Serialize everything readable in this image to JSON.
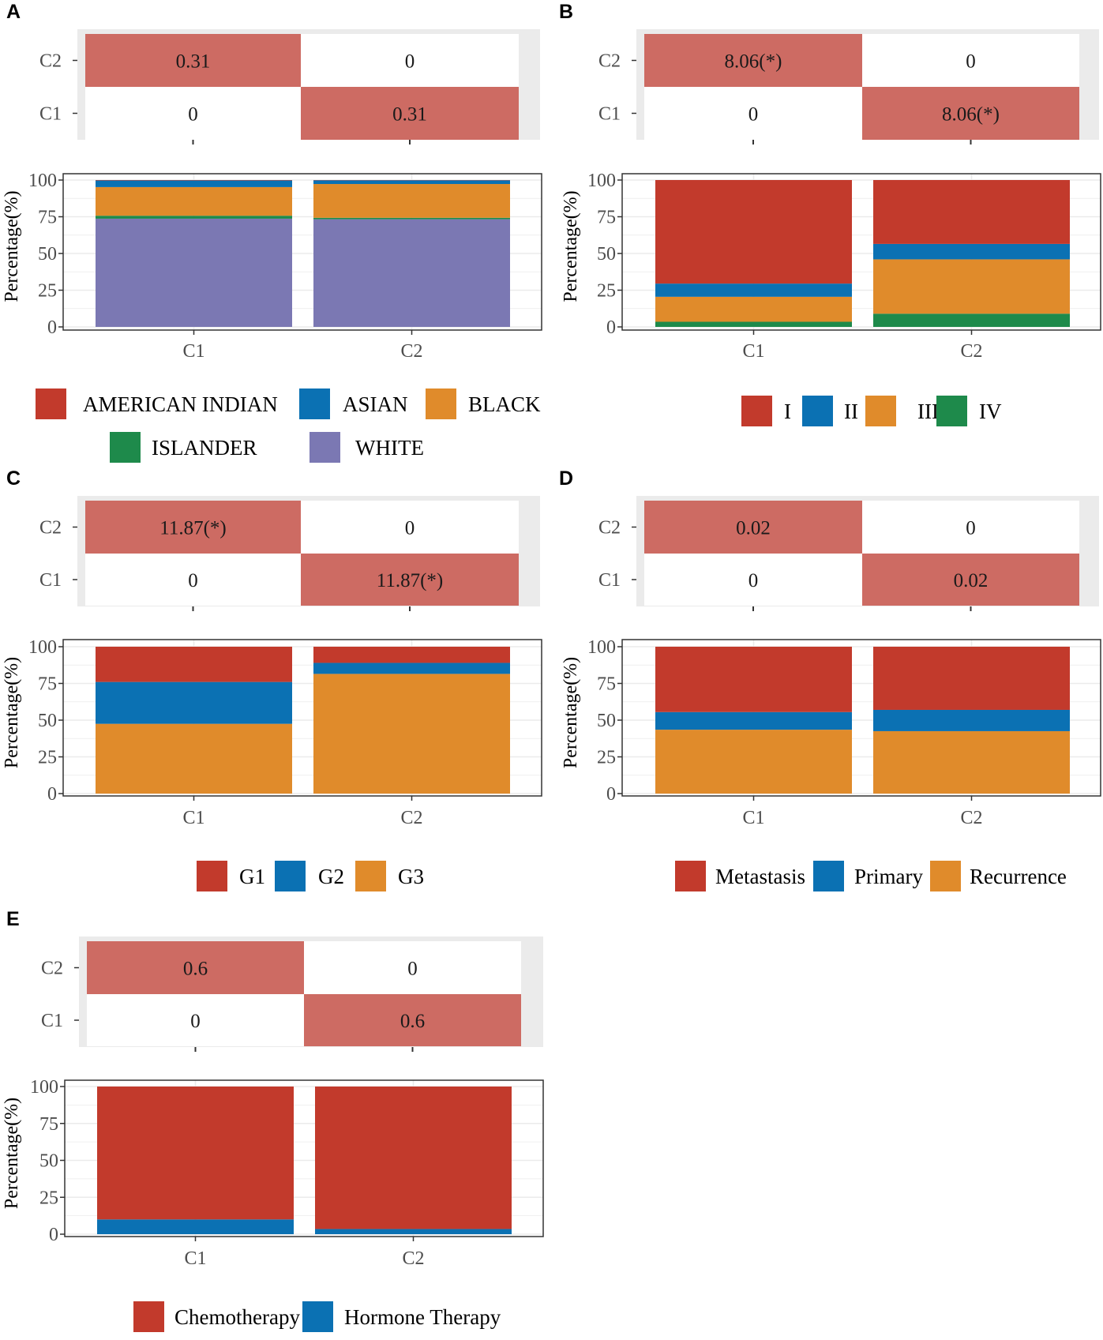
{
  "colors": {
    "heat_bg": "#ebebeb",
    "heat_on": "#cd6b63",
    "heat_off": "#ffffff",
    "grid": "#ebebeb",
    "frame": "#333333",
    "palette": [
      "#c23a2c",
      "#0b71b3",
      "#e08b2b",
      "#1e8a4b",
      "#7b78b3"
    ]
  },
  "chart_data": [
    {
      "panel": "A",
      "type": "bar",
      "stacked": true,
      "categories": [
        "C1",
        "C2"
      ],
      "ylabel": "Percentage(%)",
      "yticks": [
        "0",
        "25",
        "50",
        "75",
        "100"
      ],
      "ylim": [
        0,
        100
      ],
      "series": [
        {
          "name": "AMERICAN INDIAN",
          "color": "#c23a2c",
          "values": [
            0.3,
            0.2
          ]
        },
        {
          "name": "ASIAN",
          "color": "#0b71b3",
          "values": [
            4.5,
            2.5
          ]
        },
        {
          "name": "BLACK",
          "color": "#e08b2b",
          "values": [
            19.5,
            23.0
          ]
        },
        {
          "name": "ISLANDER",
          "color": "#1e8a4b",
          "values": [
            2.0,
            1.0
          ]
        },
        {
          "name": "WHITE",
          "color": "#7b78b3",
          "values": [
            73.7,
            73.3
          ]
        }
      ],
      "heatmap": {
        "rows": [
          "C2",
          "C1"
        ],
        "cols": [
          "C1",
          "C2"
        ],
        "cells": [
          [
            "0.31",
            "0"
          ],
          [
            "0",
            "0.31"
          ]
        ],
        "highlight": [
          [
            true,
            false
          ],
          [
            false,
            true
          ]
        ]
      },
      "legend_rows": [
        [
          0,
          1,
          2
        ],
        [
          3,
          4
        ]
      ]
    },
    {
      "panel": "B",
      "type": "bar",
      "stacked": true,
      "categories": [
        "C1",
        "C2"
      ],
      "ylabel": "Percentage(%)",
      "yticks": [
        "0",
        "25",
        "50",
        "75",
        "100"
      ],
      "ylim": [
        0,
        100
      ],
      "series": [
        {
          "name": "I",
          "color": "#c23a2c",
          "values": [
            70.5,
            43.5
          ]
        },
        {
          "name": "II",
          "color": "#0b71b3",
          "values": [
            9.0,
            10.5
          ]
        },
        {
          "name": "III",
          "color": "#e08b2b",
          "values": [
            17.0,
            37.0
          ]
        },
        {
          "name": "IV",
          "color": "#1e8a4b",
          "values": [
            3.5,
            9.0
          ]
        }
      ],
      "heatmap": {
        "rows": [
          "C2",
          "C1"
        ],
        "cols": [
          "C1",
          "C2"
        ],
        "cells": [
          [
            "8.06(*)",
            "0"
          ],
          [
            "0",
            "8.06(*)"
          ]
        ],
        "highlight": [
          [
            true,
            false
          ],
          [
            false,
            true
          ]
        ]
      },
      "legend_rows": [
        [
          0,
          1,
          2,
          3
        ]
      ]
    },
    {
      "panel": "C",
      "type": "bar",
      "stacked": true,
      "categories": [
        "C1",
        "C2"
      ],
      "ylabel": "Percentage(%)",
      "yticks": [
        "0",
        "25",
        "50",
        "75",
        "100"
      ],
      "ylim": [
        0,
        100
      ],
      "series": [
        {
          "name": "G1",
          "color": "#c23a2c",
          "values": [
            24.0,
            11.0
          ]
        },
        {
          "name": "G2",
          "color": "#0b71b3",
          "values": [
            28.5,
            7.5
          ]
        },
        {
          "name": "G3",
          "color": "#e08b2b",
          "values": [
            47.5,
            81.5
          ]
        }
      ],
      "heatmap": {
        "rows": [
          "C2",
          "C1"
        ],
        "cols": [
          "C1",
          "C2"
        ],
        "cells": [
          [
            "11.87(*)",
            "0"
          ],
          [
            "0",
            "11.87(*)"
          ]
        ],
        "highlight": [
          [
            true,
            false
          ],
          [
            false,
            true
          ]
        ]
      },
      "legend_rows": [
        [
          0,
          1,
          2
        ]
      ]
    },
    {
      "panel": "D",
      "type": "bar",
      "stacked": true,
      "categories": [
        "C1",
        "C2"
      ],
      "ylabel": "Percentage(%)",
      "yticks": [
        "0",
        "25",
        "50",
        "75",
        "100"
      ],
      "ylim": [
        0,
        100
      ],
      "series": [
        {
          "name": "Metastasis",
          "color": "#c23a2c",
          "values": [
            44.5,
            43.0
          ]
        },
        {
          "name": "Primary",
          "color": "#0b71b3",
          "values": [
            12.0,
            14.5
          ]
        },
        {
          "name": "Recurrence",
          "color": "#e08b2b",
          "values": [
            43.5,
            42.5
          ]
        }
      ],
      "heatmap": {
        "rows": [
          "C2",
          "C1"
        ],
        "cols": [
          "C1",
          "C2"
        ],
        "cells": [
          [
            "0.02",
            "0"
          ],
          [
            "0",
            "0.02"
          ]
        ],
        "highlight": [
          [
            true,
            false
          ],
          [
            false,
            true
          ]
        ]
      },
      "legend_rows": [
        [
          0,
          1,
          2
        ]
      ]
    },
    {
      "panel": "E",
      "type": "bar",
      "stacked": true,
      "categories": [
        "C1",
        "C2"
      ],
      "ylabel": "Percentage(%)",
      "yticks": [
        "0",
        "25",
        "50",
        "75",
        "100"
      ],
      "ylim": [
        0,
        100
      ],
      "series": [
        {
          "name": "Chemotherapy",
          "color": "#c23a2c",
          "values": [
            90.0,
            96.5
          ]
        },
        {
          "name": "Hormone Therapy",
          "color": "#0b71b3",
          "values": [
            10.0,
            3.5
          ]
        }
      ],
      "heatmap": {
        "rows": [
          "C2",
          "C1"
        ],
        "cols": [
          "C1",
          "C2"
        ],
        "cells": [
          [
            "0.6",
            "0"
          ],
          [
            "0",
            "0.6"
          ]
        ],
        "highlight": [
          [
            true,
            false
          ],
          [
            false,
            true
          ]
        ]
      },
      "legend_rows": [
        [
          0,
          1
        ]
      ]
    }
  ]
}
